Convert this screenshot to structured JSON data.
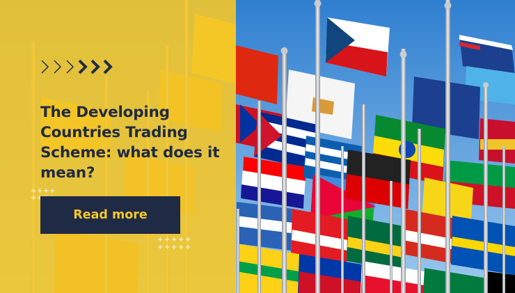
{
  "banner": {
    "headline": "The Developing Countries Trading Scheme: what does it mean?",
    "cta_label": "Read more"
  },
  "colors": {
    "accent_yellow": "#f4c72a",
    "navy": "#1f2a44"
  },
  "icons": {
    "chevrons": "double-chevron-arrows-icon",
    "decor": "plus-grid-icon"
  }
}
